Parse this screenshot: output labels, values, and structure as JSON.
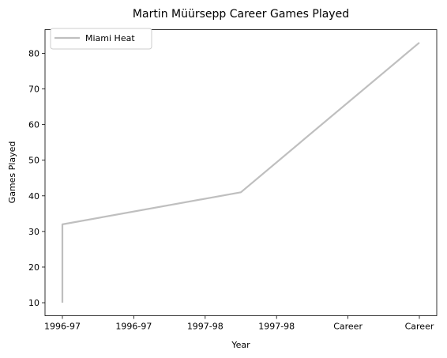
{
  "chart_data": {
    "type": "line",
    "title": "Martin Müürsepp Career Games Played",
    "xlabel": "Year",
    "ylabel": "Games Played",
    "x_tick_labels": [
      "1996-97",
      "1996-97",
      "1997-98",
      "1997-98",
      "Career",
      "Career"
    ],
    "yticks": [
      10,
      20,
      30,
      40,
      50,
      60,
      70,
      80
    ],
    "ylim": [
      6.35,
      86.65
    ],
    "x_points": [
      0,
      0,
      1.0,
      2.0
    ],
    "grid": false,
    "legend_position": "top-left",
    "series": [
      {
        "name": "Miami Heat",
        "color": "#bfbfbf",
        "x": [
          "1996-97",
          "1996-97",
          "1997-98",
          "Career"
        ],
        "values": [
          10,
          32,
          41,
          83
        ]
      }
    ]
  }
}
